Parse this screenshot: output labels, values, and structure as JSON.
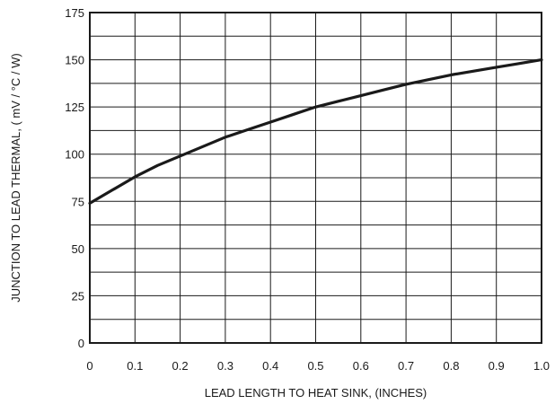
{
  "chart_data": {
    "type": "line",
    "title": "",
    "xlabel": "LEAD LENGTH TO HEAT SINK, (INCHES)",
    "ylabel": "JUNCTION TO LEAD THERMAL, ( mV / °C / W)",
    "xlim": [
      0,
      1.0
    ],
    "ylim": [
      0,
      175
    ],
    "x_ticks": [
      0,
      0.1,
      0.2,
      0.3,
      0.4,
      0.5,
      0.6,
      0.7,
      0.8,
      0.9,
      1.0
    ],
    "x_tick_labels": [
      "0",
      "0.1",
      "0.2",
      "0.3",
      "0.4",
      "0.5",
      "0.6",
      "0.7",
      "0.8",
      "0.9",
      "1.0"
    ],
    "y_ticks": [
      0,
      25,
      50,
      75,
      100,
      125,
      150,
      175
    ],
    "y_tick_labels": [
      "0",
      "25",
      "50",
      "75",
      "100",
      "125",
      "150",
      "175"
    ],
    "grid": true,
    "grid_y_step": 12.5,
    "legend": "none",
    "series": [
      {
        "color": "#1a1a1a",
        "x": [
          0,
          0.05,
          0.1,
          0.15,
          0.2,
          0.25,
          0.3,
          0.35,
          0.4,
          0.45,
          0.5,
          0.55,
          0.6,
          0.65,
          0.7,
          0.75,
          0.8,
          0.85,
          0.9,
          0.95,
          1.0
        ],
        "y": [
          74,
          81,
          88,
          94,
          99,
          104,
          109,
          113,
          117,
          121,
          125,
          128,
          131,
          134,
          137,
          139.5,
          142,
          144,
          146,
          148,
          150
        ]
      }
    ]
  }
}
